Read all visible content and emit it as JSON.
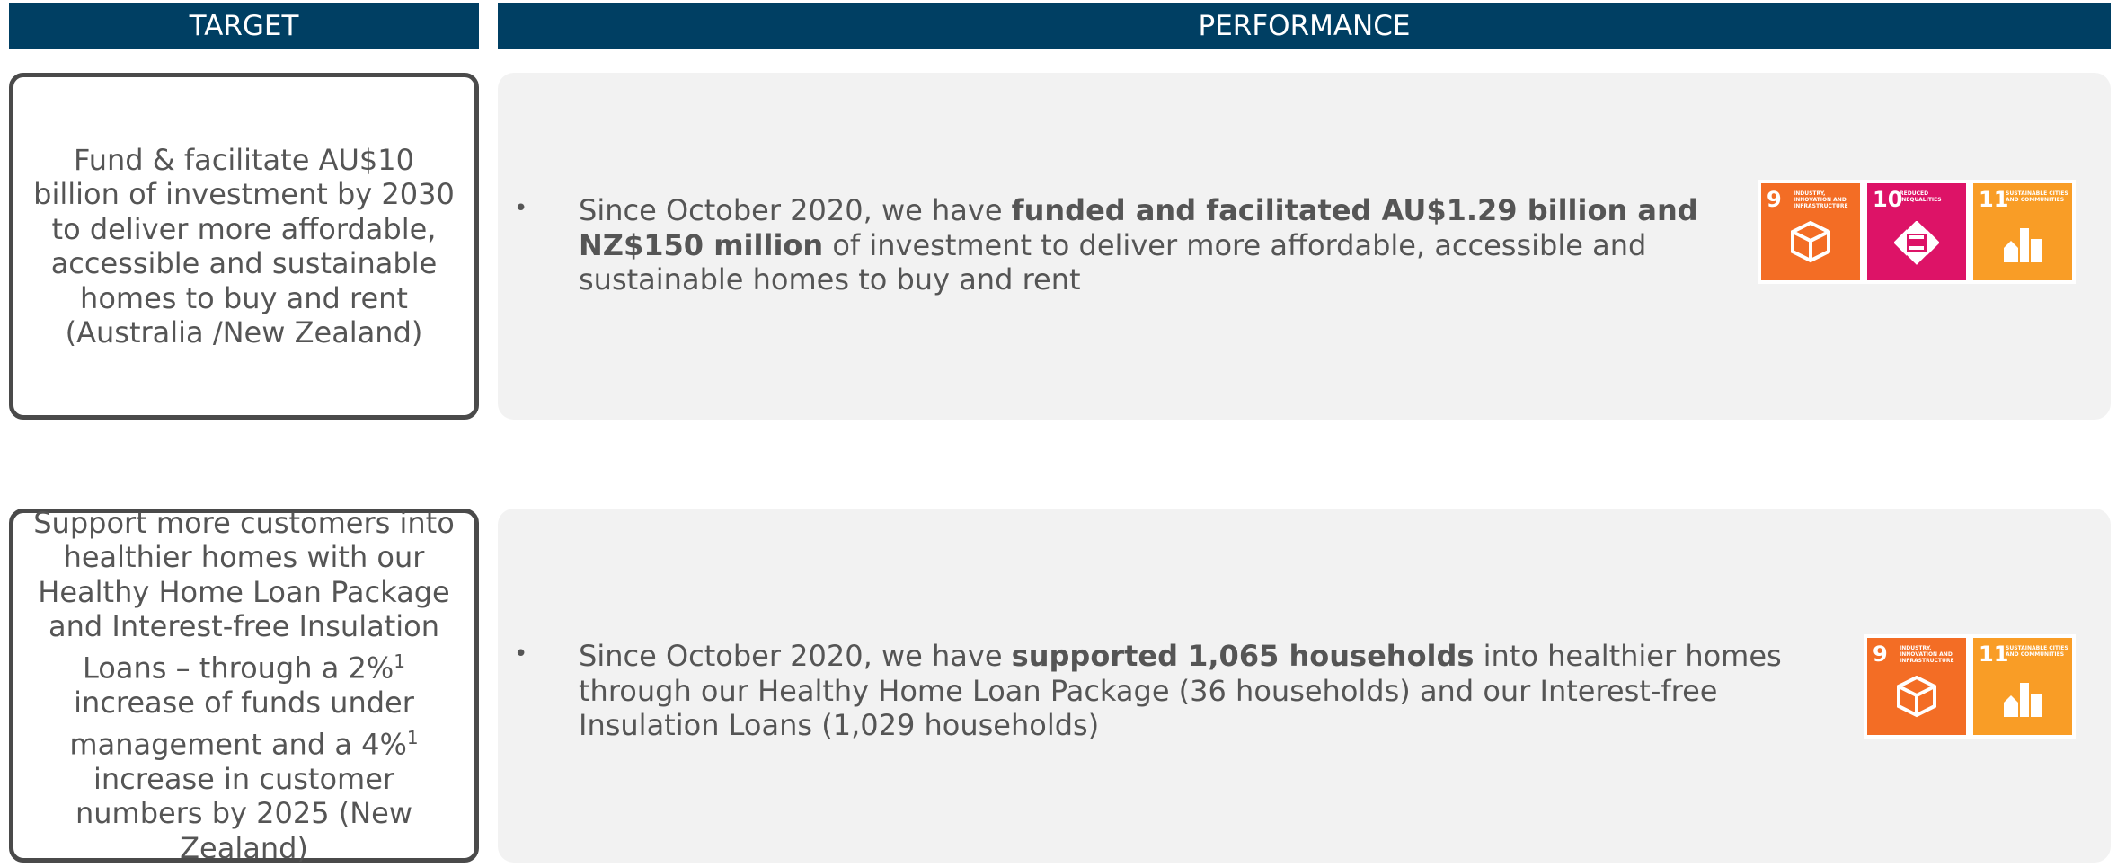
{
  "headers": {
    "target": "TARGET",
    "performance": "PERFORMANCE"
  },
  "rows": [
    {
      "target": [
        {
          "text": "Fund & facilitate AU$10 billion of investment by 2030 to deliver more affordable, accessible and sustainable homes to buy and rent (Australia /New Zealand)"
        }
      ],
      "performance": [
        {
          "text": "Since October 2020, we have "
        },
        {
          "text": "funded and facilitated AU$1.29 billion and NZ$150 million",
          "bold": true
        },
        {
          "text": " of investment to deliver more affordable, accessible and sustainable homes to buy and rent"
        }
      ],
      "sdgs": [
        {
          "number": "9",
          "label": "INDUSTRY, INNOVATION AND INFRASTRUCTURE",
          "color": "#f36d25"
        },
        {
          "number": "10",
          "label": "REDUCED INEQUALITIES",
          "color": "#dd1367"
        },
        {
          "number": "11",
          "label": "SUSTAINABLE CITIES AND COMMUNITIES",
          "color": "#f99d26"
        }
      ]
    },
    {
      "target": [
        {
          "text": "Support more customers into healthier homes with our Healthy Home Loan Package and Interest-free Insulation Loans – through a 2%"
        },
        {
          "text": "1",
          "sup": true
        },
        {
          "text": " increase of funds under management and a 4%"
        },
        {
          "text": "1",
          "sup": true
        },
        {
          "text": " increase in customer numbers by 2025 (New Zealand)"
        }
      ],
      "performance": [
        {
          "text": "Since October 2020, we have "
        },
        {
          "text": "supported 1,065 households",
          "bold": true
        },
        {
          "text": " into healthier homes through our Healthy Home Loan Package (36 households) and our Interest-free Insulation Loans (1,029 households)"
        }
      ],
      "sdgs": [
        {
          "number": "9",
          "label": "INDUSTRY, INNOVATION AND INFRASTRUCTURE",
          "color": "#f36d25"
        },
        {
          "number": "11",
          "label": "SUSTAINABLE CITIES AND COMMUNITIES",
          "color": "#f99d26"
        }
      ]
    }
  ]
}
